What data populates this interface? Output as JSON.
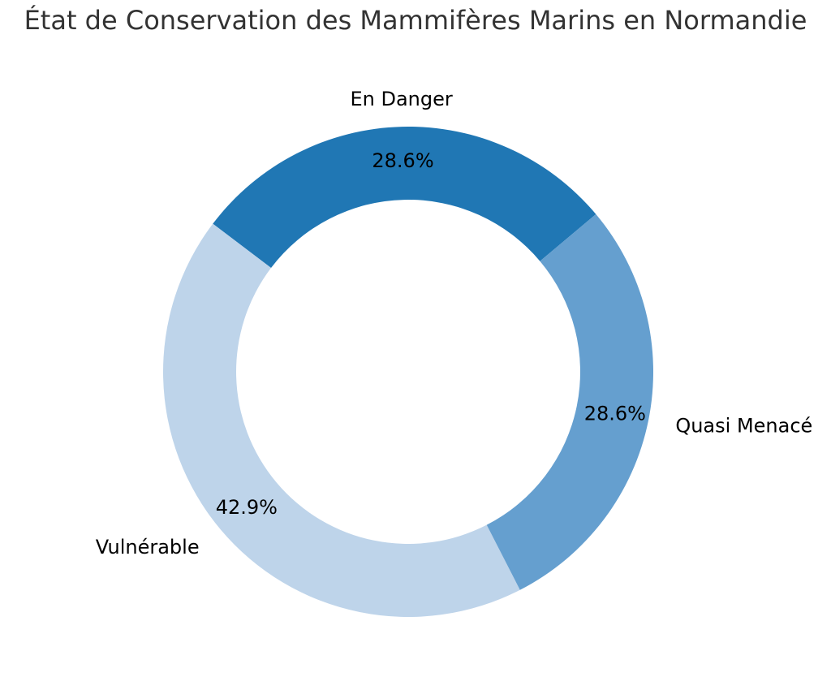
{
  "chart_data": {
    "type": "pie",
    "title": "État de Conservation des Mammifères Marins en Normandie",
    "donut": true,
    "start_angle_deg": 40,
    "direction": "counterclockwise",
    "slices": [
      {
        "label": "En Danger",
        "value": 2,
        "percent_label": "28.6%",
        "color": "#2077b4"
      },
      {
        "label": "Vulnérable",
        "value": 3,
        "percent_label": "42.9%",
        "color": "#bed4ea"
      },
      {
        "label": "Quasi Menacé",
        "value": 2,
        "percent_label": "28.6%",
        "color": "#659fcf"
      }
    ]
  }
}
